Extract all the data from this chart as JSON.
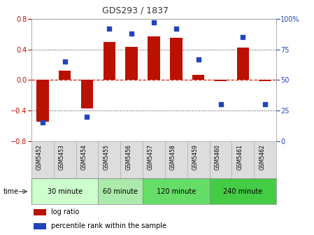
{
  "title": "GDS293 / 1837",
  "samples": [
    "GSM5452",
    "GSM5453",
    "GSM5454",
    "GSM5455",
    "GSM5456",
    "GSM5457",
    "GSM5458",
    "GSM5459",
    "GSM5460",
    "GSM5461",
    "GSM5462"
  ],
  "log_ratios": [
    -0.55,
    0.12,
    -0.37,
    0.5,
    0.43,
    0.57,
    0.55,
    0.07,
    -0.02,
    0.42,
    -0.02
  ],
  "percentile_ranks": [
    15,
    65,
    20,
    92,
    88,
    97,
    92,
    67,
    30,
    85,
    30
  ],
  "ylim": [
    -0.8,
    0.8
  ],
  "yticks_left": [
    -0.8,
    -0.4,
    0.0,
    0.4,
    0.8
  ],
  "yticks_right": [
    0,
    25,
    50,
    75,
    100
  ],
  "bar_color": "#bb1100",
  "dot_color": "#2244bb",
  "zero_line_color": "#cc2200",
  "dotted_line_color": "#333333",
  "time_groups": [
    {
      "label": "30 minute",
      "samples": [
        "GSM5452",
        "GSM5453",
        "GSM5454"
      ],
      "color": "#ccffcc"
    },
    {
      "label": "60 minute",
      "samples": [
        "GSM5455",
        "GSM5456"
      ],
      "color": "#aaeaaa"
    },
    {
      "label": "120 minute",
      "samples": [
        "GSM5457",
        "GSM5458",
        "GSM5459"
      ],
      "color": "#66dd66"
    },
    {
      "label": "240 minute",
      "samples": [
        "GSM5460",
        "GSM5461",
        "GSM5462"
      ],
      "color": "#44cc44"
    }
  ],
  "legend_bar_label": "log ratio",
  "legend_dot_label": "percentile rank within the sample",
  "time_label": "time",
  "bar_width": 0.55
}
